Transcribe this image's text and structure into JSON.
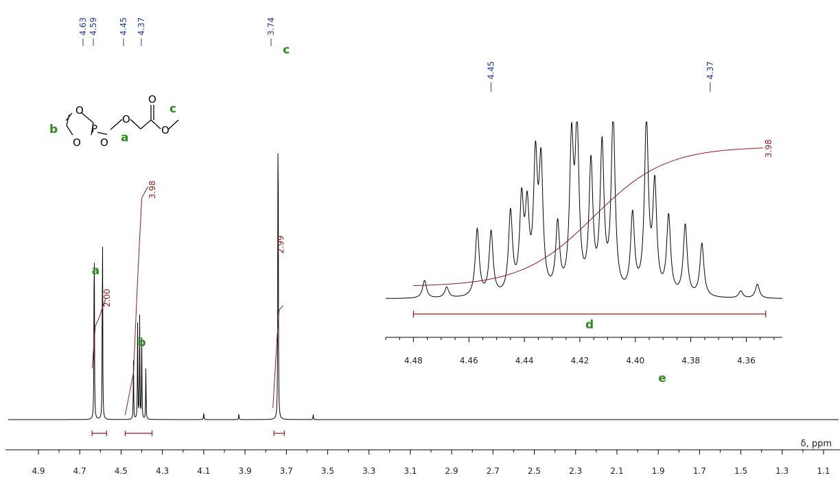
{
  "chart_data": [
    {
      "type": "line",
      "title": "",
      "xlabel": "δ, ppm",
      "ylabel": "",
      "x_axis_reversed": true,
      "xlim": [
        4.9,
        1.1
      ],
      "x_tick_labels": [
        "4.9",
        "4.7",
        "4.5",
        "4.3",
        "4.1",
        "3.9",
        "3.7",
        "3.5",
        "3.3",
        "3.1",
        "2.9",
        "2.7",
        "2.5",
        "2.3",
        "2.1",
        "1.9",
        "1.7",
        "1.5",
        "1.3",
        "1.1"
      ],
      "peak_labels": [
        {
          "x": 4.63,
          "text": "4.63"
        },
        {
          "x": 4.59,
          "text": "4.59"
        },
        {
          "x": 4.45,
          "text": "4.45"
        },
        {
          "x": 4.37,
          "text": "4.37"
        },
        {
          "x": 3.74,
          "text": "3.74"
        }
      ],
      "integrals": [
        {
          "from": 4.64,
          "to": 4.57,
          "value": 2.0,
          "text": "2.00"
        },
        {
          "from": 4.48,
          "to": 4.35,
          "value": 3.98,
          "text": "3.98"
        },
        {
          "from": 3.76,
          "to": 3.71,
          "value": 2.99,
          "text": "2.99"
        }
      ],
      "assignments": [
        {
          "x": 4.61,
          "text": "a"
        },
        {
          "x": 4.4,
          "text": "b"
        },
        {
          "x": 3.74,
          "text": "c"
        }
      ],
      "series": [
        {
          "peaks": [
            {
              "x": 4.63,
              "height": 0.58
            },
            {
              "x": 4.59,
              "height": 0.58
            },
            {
              "x": 4.44,
              "height": 0.16
            },
            {
              "x": 4.42,
              "height": 0.26
            },
            {
              "x": 4.41,
              "height": 0.28
            },
            {
              "x": 4.4,
              "height": 0.22
            },
            {
              "x": 4.38,
              "height": 0.14
            },
            {
              "x": 3.74,
              "height": 1.0
            },
            {
              "x": 4.1,
              "height": 0.02
            },
            {
              "x": 3.93,
              "height": 0.015
            },
            {
              "x": 3.57,
              "height": 0.015
            }
          ]
        }
      ]
    },
    {
      "type": "line",
      "title": "",
      "xlabel": "",
      "ylabel": "",
      "x_axis_reversed": true,
      "xlim": [
        4.49,
        4.347
      ],
      "x_tick_labels": [
        "4.48",
        "4.46",
        "4.44",
        "4.42",
        "4.40",
        "4.38",
        "4.36"
      ],
      "peak_labels": [
        {
          "x": 4.452,
          "text": "4.45"
        },
        {
          "x": 4.373,
          "text": "4.37"
        }
      ],
      "integrals": [
        {
          "from": 4.48,
          "to": 4.353,
          "value": 3.98,
          "text": "3.98"
        }
      ],
      "assignments": [
        {
          "label": "d"
        },
        {
          "label": "e"
        }
      ],
      "series": [
        {
          "peaks": [
            {
              "x": 4.476,
              "height": 0.1
            },
            {
              "x": 4.468,
              "height": 0.06
            },
            {
              "x": 4.457,
              "height": 0.38
            },
            {
              "x": 4.452,
              "height": 0.36
            },
            {
              "x": 4.445,
              "height": 0.46
            },
            {
              "x": 4.441,
              "height": 0.5
            },
            {
              "x": 4.439,
              "height": 0.44
            },
            {
              "x": 4.436,
              "height": 0.72
            },
            {
              "x": 4.434,
              "height": 0.7
            },
            {
              "x": 4.428,
              "height": 0.38
            },
            {
              "x": 4.423,
              "height": 0.82
            },
            {
              "x": 4.421,
              "height": 0.88
            },
            {
              "x": 4.416,
              "height": 0.72
            },
            {
              "x": 4.412,
              "height": 0.82
            },
            {
              "x": 4.408,
              "height": 1.0
            },
            {
              "x": 4.401,
              "height": 0.44
            },
            {
              "x": 4.396,
              "height": 0.97
            },
            {
              "x": 4.393,
              "height": 0.6
            },
            {
              "x": 4.388,
              "height": 0.44
            },
            {
              "x": 4.382,
              "height": 0.4
            },
            {
              "x": 4.376,
              "height": 0.3
            },
            {
              "x": 4.362,
              "height": 0.04
            },
            {
              "x": 4.356,
              "height": 0.08
            }
          ]
        }
      ]
    }
  ],
  "structure": {
    "atoms": [
      "O",
      "O",
      "P",
      "O",
      "O",
      "O",
      "O"
    ],
    "labels": [
      "a",
      "b",
      "c"
    ]
  },
  "colors": {
    "spectrum": "#000000",
    "integral": "#8b1a1a",
    "peak_label": "#1f3c9c",
    "assignment": "#2e8b1e"
  }
}
